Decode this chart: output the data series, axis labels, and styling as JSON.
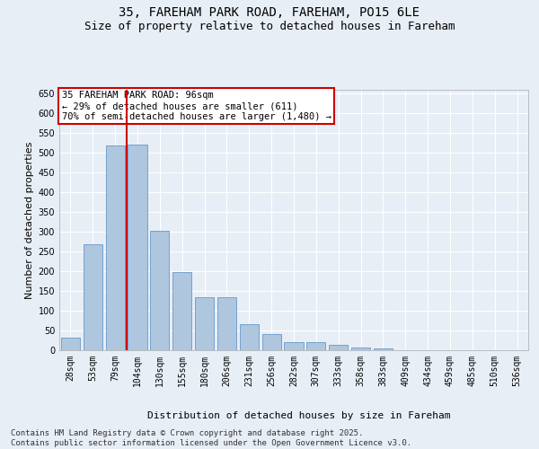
{
  "title": "35, FAREHAM PARK ROAD, FAREHAM, PO15 6LE",
  "subtitle": "Size of property relative to detached houses in Fareham",
  "xlabel": "Distribution of detached houses by size in Fareham",
  "ylabel": "Number of detached properties",
  "categories": [
    "28sqm",
    "53sqm",
    "79sqm",
    "104sqm",
    "130sqm",
    "155sqm",
    "180sqm",
    "206sqm",
    "231sqm",
    "256sqm",
    "282sqm",
    "307sqm",
    "333sqm",
    "358sqm",
    "383sqm",
    "409sqm",
    "434sqm",
    "459sqm",
    "485sqm",
    "510sqm",
    "536sqm"
  ],
  "values": [
    32,
    268,
    518,
    521,
    303,
    199,
    134,
    134,
    67,
    40,
    21,
    21,
    14,
    6,
    4,
    1,
    1,
    1,
    0,
    0,
    1
  ],
  "bar_color": "#aec6de",
  "bar_edge_color": "#6699cc",
  "bg_color": "#e8eef6",
  "grid_color": "#ffffff",
  "vline_x_index": 2,
  "vline_color": "#cc0000",
  "annotation_text": "35 FAREHAM PARK ROAD: 96sqm\n← 29% of detached houses are smaller (611)\n70% of semi-detached houses are larger (1,480) →",
  "annotation_box_color": "#ffffff",
  "annotation_box_edge_color": "#cc0000",
  "ylim": [
    0,
    660
  ],
  "yticks": [
    0,
    50,
    100,
    150,
    200,
    250,
    300,
    350,
    400,
    450,
    500,
    550,
    600,
    650
  ],
  "footnote": "Contains HM Land Registry data © Crown copyright and database right 2025.\nContains public sector information licensed under the Open Government Licence v3.0.",
  "title_fontsize": 10,
  "subtitle_fontsize": 9,
  "annotation_fontsize": 7.5,
  "axis_label_fontsize": 8,
  "tick_fontsize": 7,
  "footnote_fontsize": 6.5
}
